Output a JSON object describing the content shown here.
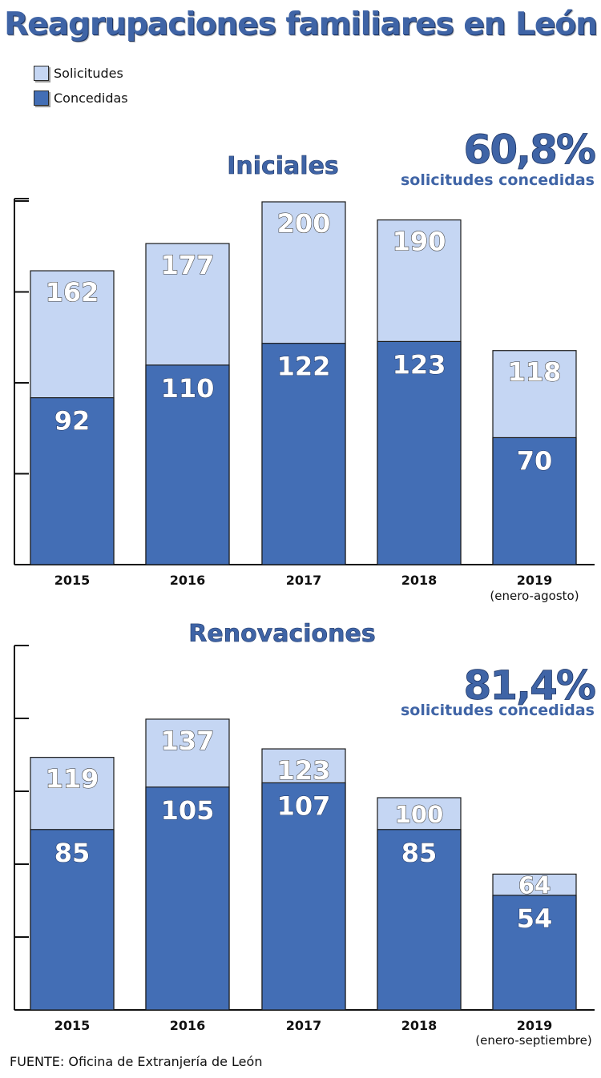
{
  "title": "Reagrupaciones familiares en León",
  "legend": {
    "solicitudes": "Solicitudes",
    "concedidas": "Concedidas"
  },
  "colors": {
    "solicitudes": "#c5d6f3",
    "concedidas": "#436eb5",
    "accent": "#3f64a6"
  },
  "source": "FUENTE: Oficina de Extranjería de León",
  "chart_data": [
    {
      "type": "bar",
      "title": "Iniciales",
      "highlight": {
        "value": "60,8%",
        "caption": "solicitudes concedidas"
      },
      "categories": [
        "2015",
        "2016",
        "2017",
        "2018",
        "2019"
      ],
      "category_notes": [
        "",
        "",
        "",
        "",
        "(enero-agosto)"
      ],
      "series": [
        {
          "name": "Solicitudes",
          "values": [
            162,
            177,
            200,
            190,
            118
          ]
        },
        {
          "name": "Concedidas",
          "values": [
            92,
            110,
            122,
            123,
            70
          ]
        }
      ],
      "ylim": [
        0,
        200
      ],
      "grid": false,
      "legend": "top-left"
    },
    {
      "type": "bar",
      "title": "Renovaciones",
      "highlight": {
        "value": "81,4%",
        "caption": "solicitudes concedidas"
      },
      "categories": [
        "2015",
        "2016",
        "2017",
        "2018",
        "2019"
      ],
      "category_notes": [
        "",
        "",
        "",
        "",
        "(enero-septiembre)"
      ],
      "series": [
        {
          "name": "Solicitudes",
          "values": [
            119,
            137,
            123,
            100,
            64
          ]
        },
        {
          "name": "Concedidas",
          "values": [
            85,
            105,
            107,
            85,
            54
          ]
        }
      ],
      "ylim": [
        0,
        137
      ],
      "grid": false,
      "legend": "top-left"
    }
  ]
}
